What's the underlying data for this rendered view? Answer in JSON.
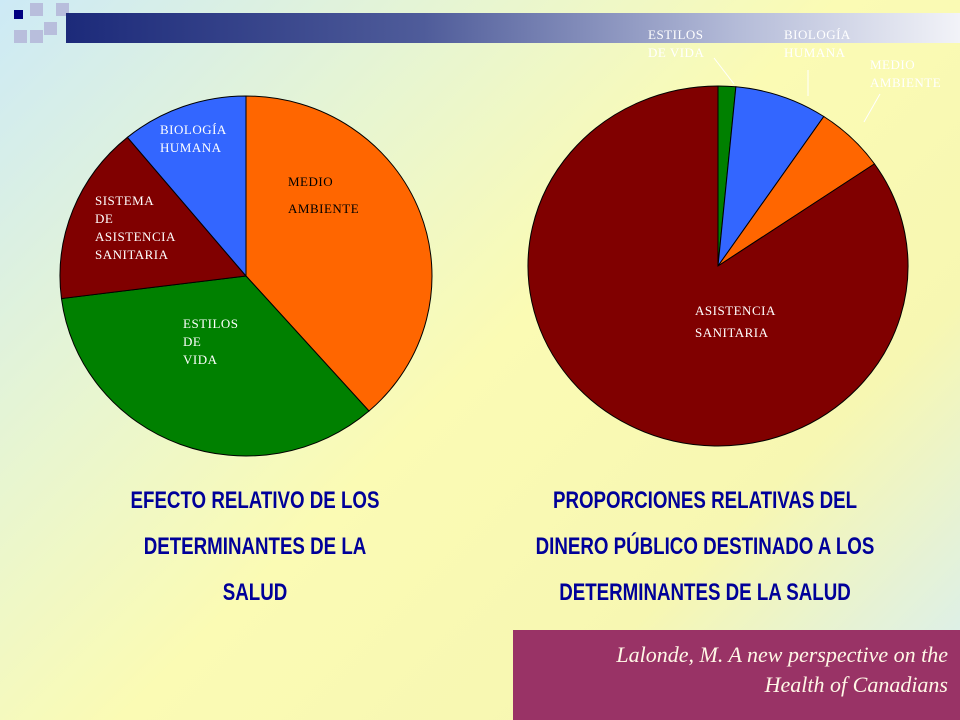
{
  "colors": {
    "medio_ambiente": "#FF6600",
    "estilos_de_vida": "#008000",
    "sistema_sanitario": "#800000",
    "biologia_humana": "#3366FF",
    "title": "#000099",
    "citation_bg": "#993366",
    "deco_dark": "#000080",
    "deco_light": "#B8BEDC"
  },
  "chart_data": [
    {
      "type": "pie",
      "title": "EFECTO RELATIVO DE LOS DETERMINANTES DE LA SALUD",
      "slices": [
        {
          "label": "MEDIO\nAMBIENTE",
          "value": 38.5,
          "color": "#FF6600"
        },
        {
          "label": "ESTILOS\n    DE\n  VIDA",
          "value": 34.5,
          "color": "#008000"
        },
        {
          "label": "SISTEMA\n    DE\nASISTENCIA\nSANITARIA",
          "value": 16.0,
          "color": "#800000"
        },
        {
          "label": "BIOLOGÍA\nHUMANA",
          "value": 11.0,
          "color": "#3366FF"
        }
      ]
    },
    {
      "type": "pie",
      "title": "PROPORCIONES RELATIVAS DEL DINERO PÚBLICO DESTINADO A LOS DETERMINANTES DE LA SALUD",
      "slices": [
        {
          "label": "ESTILOS\nDE VIDA",
          "value": 1.5,
          "color": "#008000"
        },
        {
          "label": "BIOLOGÍA\nHUMANA",
          "value": 7.9,
          "color": "#3366FF"
        },
        {
          "label": "MEDIO\nAMBIENTE",
          "value": 6.0,
          "color": "#FF6600"
        },
        {
          "label": "ASISTENCIA\nSANITARIA",
          "value": 84.6,
          "color": "#800000"
        }
      ]
    }
  ],
  "titles": {
    "left": [
      "EFECTO RELATIVO DE LOS",
      "DETERMINANTES DE LA",
      "SALUD"
    ],
    "right": [
      "PROPORCIONES RELATIVAS DEL",
      "DINERO  PÚBLICO DESTINADO A LOS",
      "DETERMINANTES DE LA SALUD"
    ]
  },
  "citation": {
    "line1": "Lalonde, M. A new perspective on the",
    "line2": "Health of Canadians"
  }
}
